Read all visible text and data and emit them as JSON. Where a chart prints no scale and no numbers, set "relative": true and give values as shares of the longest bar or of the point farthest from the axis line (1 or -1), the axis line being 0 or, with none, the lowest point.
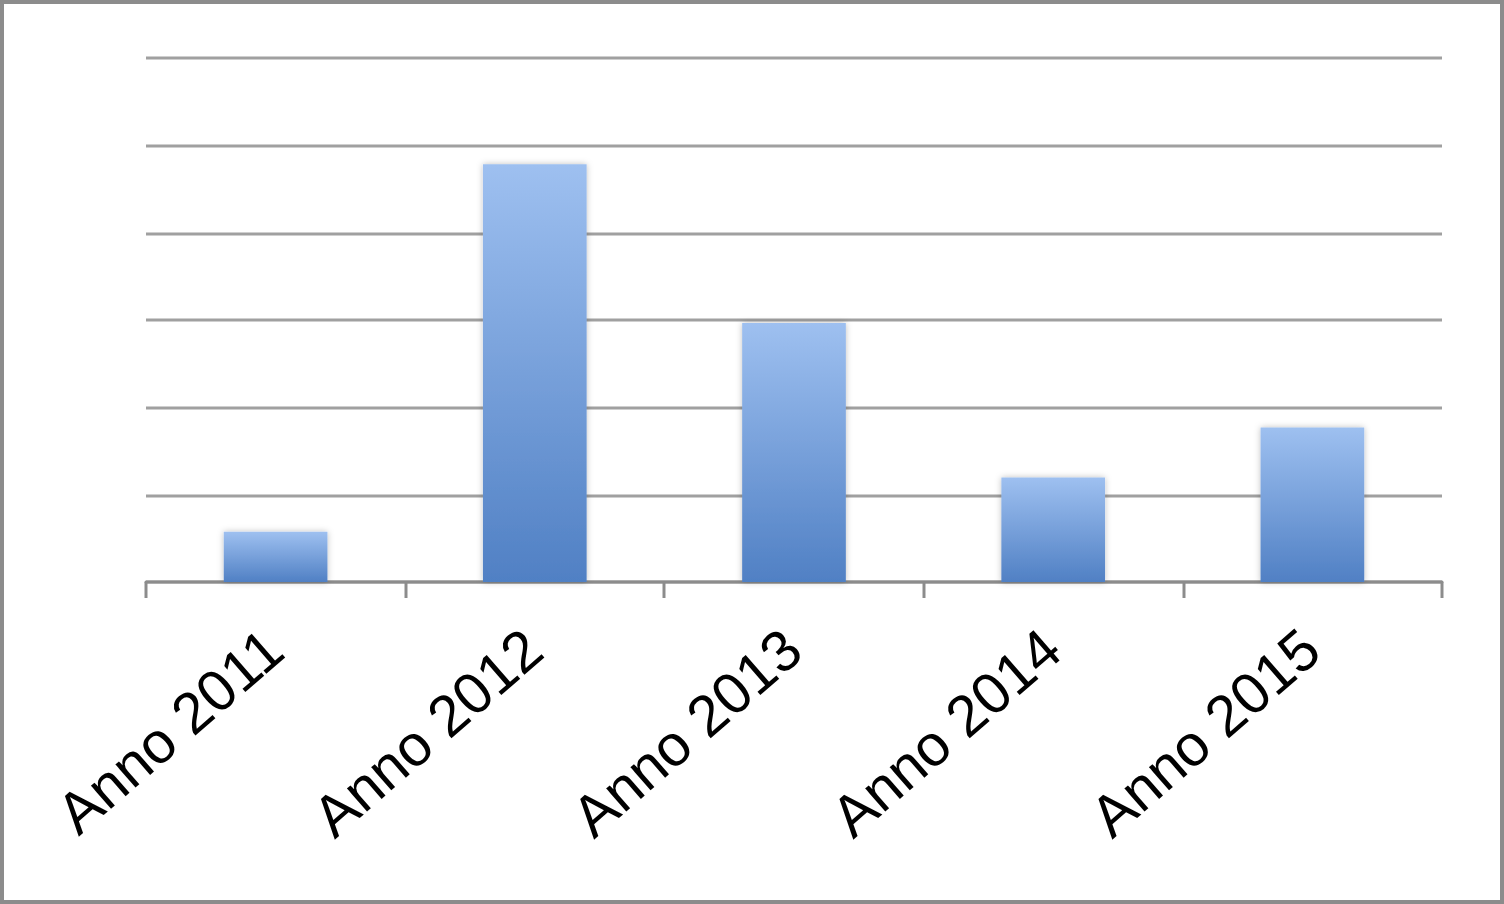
{
  "chart_data": {
    "type": "bar",
    "categories": [
      "Anno 2011",
      "Anno 2012",
      "Anno 2013",
      "Anno 2014",
      "Anno 2015"
    ],
    "values": [
      0.12,
      1,
      0.62,
      0.25,
      0.37
    ],
    "color": "#5e96e6",
    "relative": true,
    "grid": "y"
  }
}
